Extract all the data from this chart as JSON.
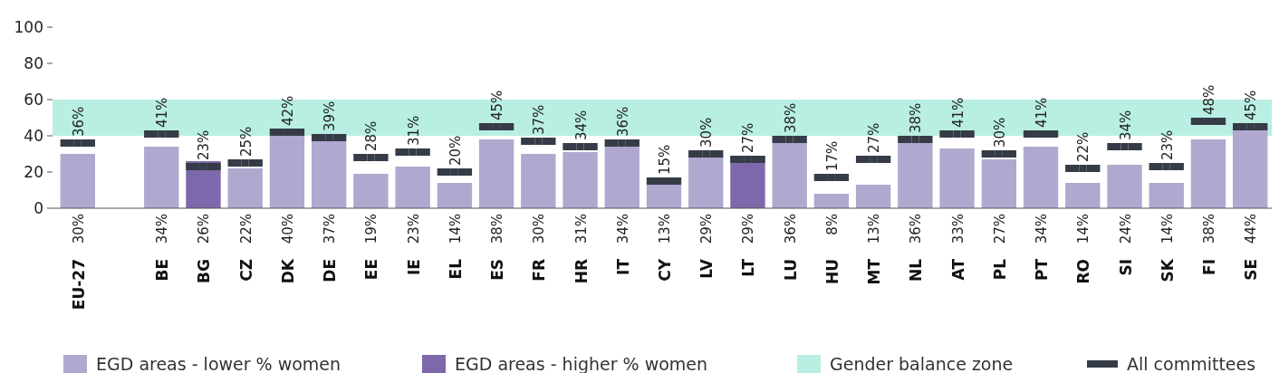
{
  "chart_data": {
    "type": "bar",
    "categories": [
      "EU-27",
      null,
      "BE",
      "BG",
      "CZ",
      "DK",
      "DE",
      "EE",
      "IE",
      "EL",
      "ES",
      "FR",
      "HR",
      "IT",
      "CY",
      "LV",
      "LT",
      "LU",
      "HU",
      "MT",
      "NL",
      "AT",
      "PL",
      "PT",
      "RO",
      "SI",
      "SK",
      "FI",
      "SE"
    ],
    "series": [
      {
        "name": "EGD areas - lower % women",
        "color": "#b1a8d0",
        "values": [
          30,
          null,
          34,
          null,
          22,
          40,
          37,
          19,
          23,
          14,
          38,
          30,
          31,
          34,
          13,
          29,
          null,
          36,
          8,
          13,
          36,
          33,
          27,
          34,
          14,
          24,
          14,
          38,
          44
        ],
        "value_labels": [
          "30%",
          null,
          "34%",
          null,
          "22%",
          "40%",
          "37%",
          "19%",
          "23%",
          "14%",
          "38%",
          "30%",
          "31%",
          "34%",
          "13%",
          "29%",
          null,
          "36%",
          "8%",
          "13%",
          "36%",
          "33%",
          "27%",
          "34%",
          "14%",
          "24%",
          "14%",
          "38%",
          "44%"
        ]
      },
      {
        "name": "EGD areas - higher % women",
        "color": "#7d68ab",
        "values": [
          null,
          null,
          null,
          26,
          null,
          null,
          null,
          null,
          null,
          null,
          null,
          null,
          null,
          null,
          null,
          null,
          29,
          null,
          null,
          null,
          null,
          null,
          null,
          null,
          null,
          null,
          null,
          null,
          null
        ],
        "value_labels": [
          null,
          null,
          null,
          "26%",
          null,
          null,
          null,
          null,
          null,
          null,
          null,
          null,
          null,
          null,
          null,
          null,
          "29%",
          null,
          null,
          null,
          null,
          null,
          null,
          null,
          null,
          null,
          null,
          null,
          null
        ]
      },
      {
        "name": "All committees",
        "type": "scatter",
        "color": "#353c47",
        "values": [
          36,
          null,
          41,
          23,
          25,
          42,
          39,
          28,
          31,
          20,
          45,
          37,
          34,
          36,
          15,
          30,
          27,
          38,
          17,
          27,
          38,
          41,
          30,
          41,
          22,
          34,
          23,
          48,
          45
        ],
        "value_labels": [
          "36%",
          null,
          "41%",
          "23%",
          "25%",
          "42%",
          "39%",
          "28%",
          "31%",
          "20%",
          "45%",
          "37%",
          "34%",
          "36%",
          "15%",
          "30%",
          "27%",
          "38%",
          "17%",
          "27%",
          "38%",
          "41%",
          "30%",
          "41%",
          "22%",
          "34%",
          "23%",
          "48%",
          "45%"
        ]
      }
    ],
    "ylim": [
      0,
      100
    ],
    "yticks": [
      0,
      20,
      40,
      60,
      80,
      100
    ],
    "bands": [
      {
        "axis": "y",
        "from": 40,
        "to": 60,
        "label": "Gender balance zone",
        "color": "#b8efe2"
      }
    ],
    "marker": "square",
    "legend": "bottom"
  }
}
